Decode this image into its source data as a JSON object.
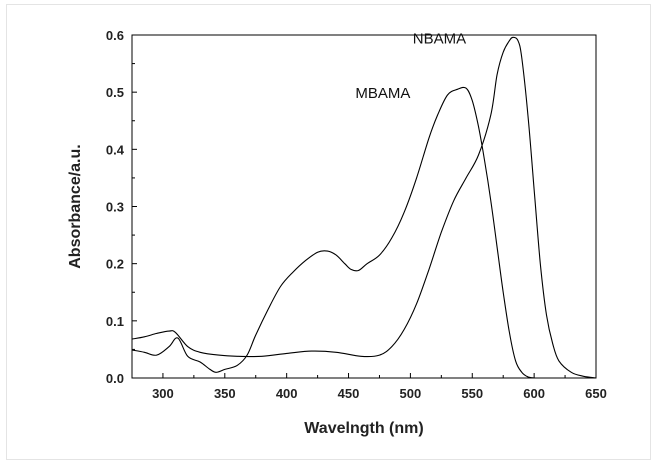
{
  "chart_data": {
    "type": "line",
    "xlabel": "Wavelngth (nm)",
    "ylabel": "Absorbance/a.u.",
    "xlim": [
      275,
      650
    ],
    "ylim": [
      0,
      0.6
    ],
    "xticks": [
      300,
      350,
      400,
      450,
      500,
      550,
      600,
      650
    ],
    "yticks": [
      0.0,
      0.1,
      0.2,
      0.3,
      0.4,
      0.5,
      0.6
    ],
    "xtick_labels": [
      "300",
      "350",
      "400",
      "450",
      "500",
      "550",
      "600",
      "650"
    ],
    "ytick_labels": [
      "0.0",
      "0.1",
      "0.2",
      "0.3",
      "0.4",
      "0.5",
      "0.6"
    ],
    "grid": false,
    "legend": "none",
    "series": [
      {
        "name": "MBAMA",
        "color": "#000000",
        "x": [
          275,
          285,
          295,
          305,
          312,
          320,
          330,
          338,
          343,
          350,
          360,
          368,
          375,
          385,
          395,
          405,
          415,
          425,
          433,
          440,
          447,
          452,
          458,
          465,
          475,
          485,
          495,
          505,
          515,
          522,
          530,
          538,
          545,
          550,
          555,
          560,
          565,
          570,
          575,
          580,
          585,
          590,
          595,
          600
        ],
        "y": [
          0.049,
          0.045,
          0.04,
          0.055,
          0.07,
          0.038,
          0.028,
          0.015,
          0.01,
          0.015,
          0.022,
          0.04,
          0.075,
          0.12,
          0.16,
          0.185,
          0.205,
          0.22,
          0.222,
          0.215,
          0.2,
          0.19,
          0.188,
          0.2,
          0.215,
          0.245,
          0.29,
          0.35,
          0.42,
          0.46,
          0.495,
          0.505,
          0.507,
          0.485,
          0.44,
          0.38,
          0.31,
          0.23,
          0.15,
          0.08,
          0.03,
          0.01,
          0.002,
          0.0
        ]
      },
      {
        "name": "NBAMA",
        "color": "#000000",
        "x": [
          275,
          285,
          295,
          305,
          310,
          320,
          330,
          345,
          360,
          380,
          400,
          420,
          440,
          460,
          475,
          485,
          495,
          505,
          515,
          525,
          535,
          545,
          555,
          565,
          570,
          575,
          580,
          583,
          587,
          590,
          595,
          600,
          605,
          610,
          615,
          620,
          630,
          640,
          650
        ],
        "y": [
          0.068,
          0.072,
          0.078,
          0.082,
          0.08,
          0.055,
          0.045,
          0.04,
          0.038,
          0.038,
          0.043,
          0.047,
          0.045,
          0.038,
          0.04,
          0.055,
          0.085,
          0.13,
          0.19,
          0.255,
          0.31,
          0.35,
          0.39,
          0.46,
          0.53,
          0.57,
          0.59,
          0.596,
          0.59,
          0.56,
          0.46,
          0.33,
          0.2,
          0.11,
          0.06,
          0.03,
          0.01,
          0.003,
          0.0
        ]
      }
    ],
    "annotations": [
      {
        "text": "MBAMA",
        "x": 500,
        "y": 0.49
      },
      {
        "text": "NBAMA",
        "x": 545,
        "y": 0.585
      }
    ]
  }
}
